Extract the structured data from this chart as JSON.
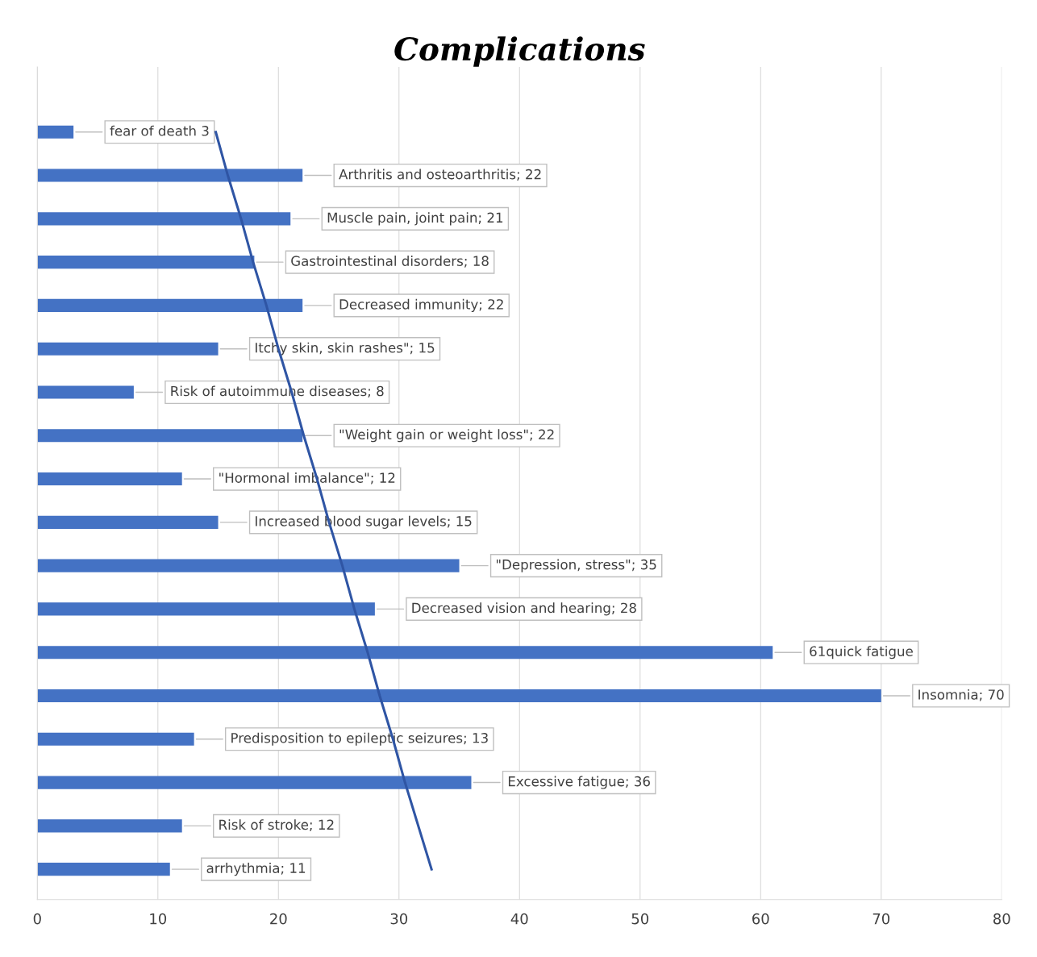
{
  "chart_data": {
    "type": "bar",
    "orientation": "horizontal",
    "title": "Complications",
    "categories": [
      null,
      null,
      null,
      null,
      null,
      null,
      null,
      null,
      null,
      null,
      null,
      null,
      null,
      null,
      null,
      null,
      null,
      null
    ],
    "series": [
      {
        "color": "#4472c4",
        "values": [
          3,
          22,
          21,
          18,
          22,
          15,
          8,
          22,
          12,
          15,
          35,
          28,
          61,
          70,
          13,
          36,
          12,
          11
        ],
        "value_labels": [
          "fear of death 3",
          "Arthritis and osteoarthritis; 22",
          "Muscle pain, joint pain; 21",
          "Gastrointestinal disorders; 18",
          "Decreased immunity; 22",
          "Itchy skin, skin rashes\"; 15",
          "Risk of autoimmune diseases; 8",
          "\"Weight gain or weight loss\"; 22",
          "\"Hormonal imbalance\"; 12",
          "Increased blood sugar levels; 15",
          "\"Depression, stress\"; 35",
          "Decreased vision and hearing; 28",
          "61quick fatigue",
          "Insomnia; 70",
          "Predisposition to epileptic seizures; 13",
          "Excessive fatigue; 36",
          "Risk of stroke; 12",
          "arrhythmia; 11"
        ]
      },
      {
        "type": "line",
        "color": "#2f55a4",
        "values": [
          14.8,
          15.8,
          16.9,
          17.9,
          19.0,
          20.0,
          21.1,
          22.1,
          23.2,
          24.2,
          25.3,
          26.3,
          27.4,
          28.4,
          29.5,
          30.5,
          31.6,
          32.7
        ]
      }
    ],
    "xlim": [
      0,
      80
    ],
    "xticks": [
      0,
      10,
      20,
      30,
      40,
      50,
      60,
      70,
      80
    ],
    "grid": "x"
  }
}
